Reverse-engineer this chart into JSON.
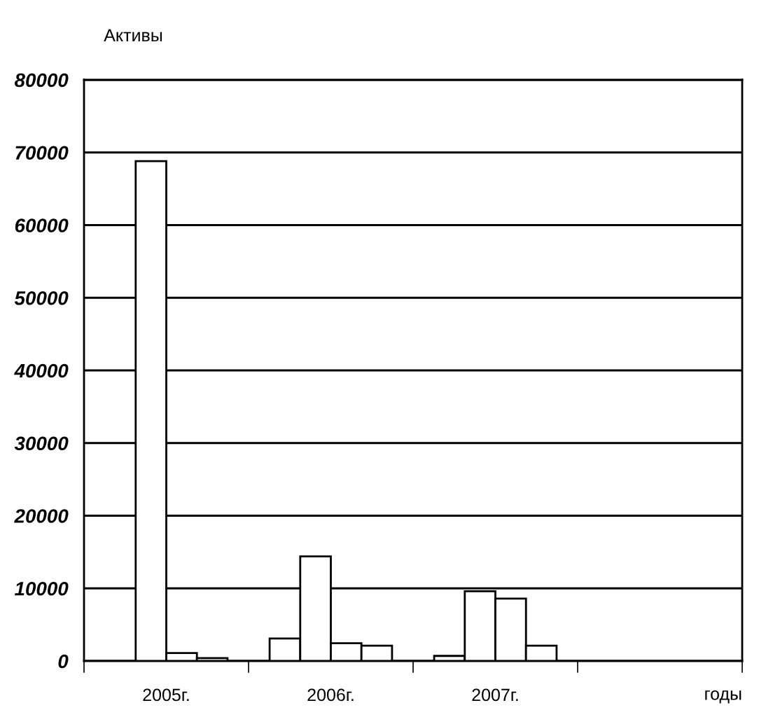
{
  "chart_data": {
    "type": "bar",
    "ylabel": "Активы",
    "xlabel": "годы",
    "categories": [
      "2005г.",
      "2006г.",
      "2007г.",
      null
    ],
    "series": [
      {
        "color": "#ffffff",
        "values": [
          null,
          3100,
          700,
          null
        ]
      },
      {
        "color": "#ffffff",
        "values": [
          68800,
          14400,
          9600,
          null
        ]
      },
      {
        "color": "#ffffff",
        "values": [
          1100,
          2450,
          8600,
          null
        ]
      },
      {
        "color": "#ffffff",
        "values": [
          400,
          2100,
          2100,
          null
        ]
      }
    ],
    "ylim": [
      0,
      80000
    ],
    "yticks": [
      0,
      10000,
      20000,
      30000,
      40000,
      50000,
      60000,
      70000,
      80000
    ],
    "grid": "y",
    "legend": false
  }
}
